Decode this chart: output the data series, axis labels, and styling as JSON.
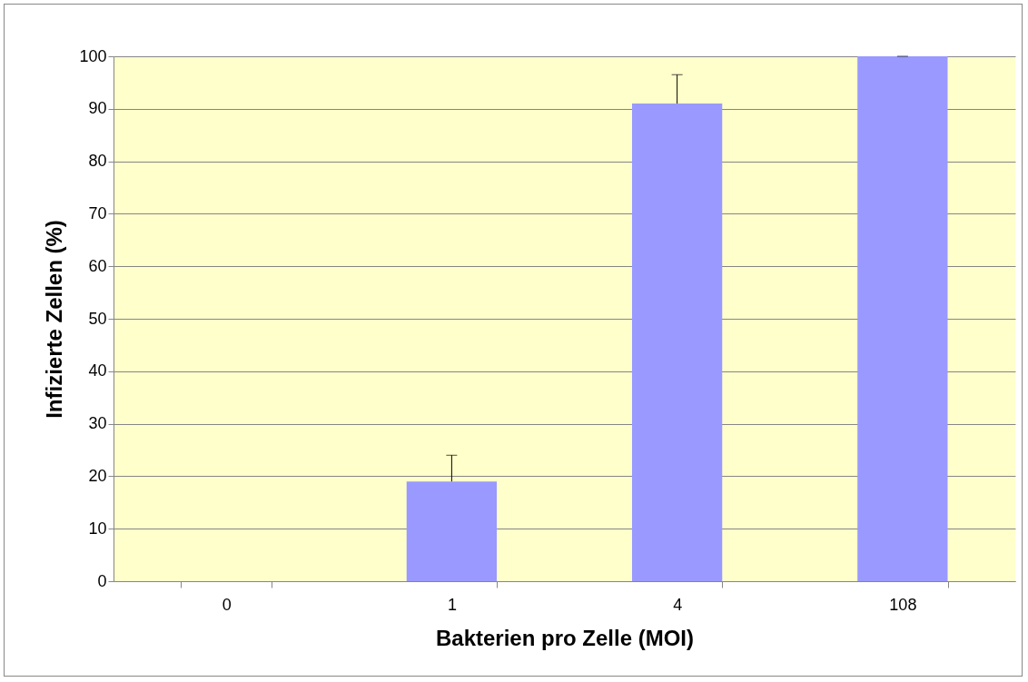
{
  "chart_data": {
    "type": "bar",
    "xlabel": "Bakterien pro Zelle (MOI)",
    "ylabel": "Infizierte Zellen (%)",
    "categories": [
      "0",
      "1",
      "4",
      "108"
    ],
    "values": [
      0,
      19,
      91,
      100
    ],
    "errors": [
      null,
      [
        19,
        24
      ],
      [
        91,
        96.5
      ],
      [
        100,
        100
      ]
    ],
    "color": "#9999ff",
    "ylim": [
      0,
      100
    ],
    "yticks": [
      0,
      10,
      20,
      30,
      40,
      50,
      60,
      70,
      80,
      90,
      100
    ],
    "grid": "y"
  }
}
